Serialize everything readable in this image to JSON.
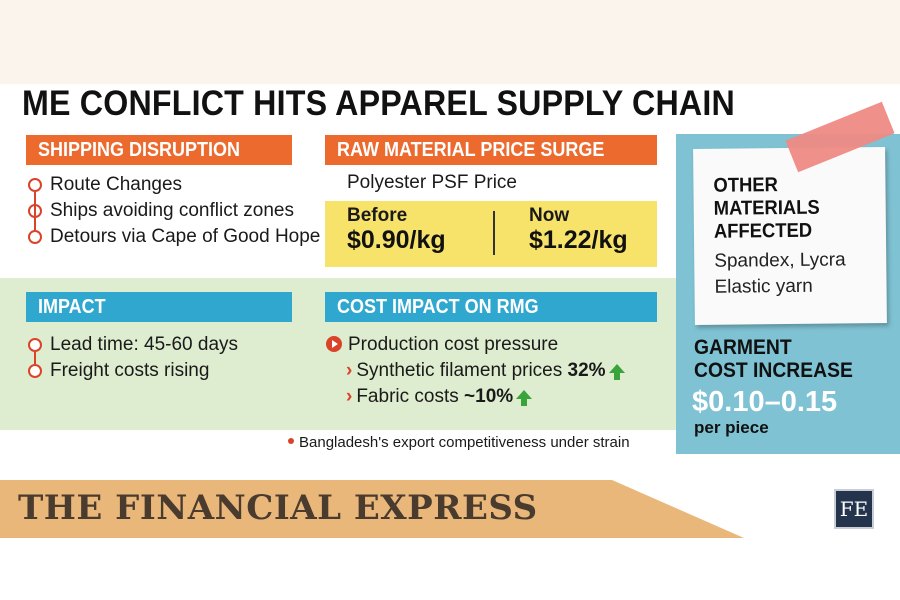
{
  "title": "ME CONFLICT HITS APPAREL SUPPLY CHAIN",
  "shipping": {
    "header": "SHIPPING DISRUPTION",
    "items": [
      "Route Changes",
      "Ships avoiding conflict zones",
      "Detours via Cape of Good Hope"
    ]
  },
  "raw_material": {
    "header": "RAW MATERIAL PRICE SURGE",
    "subtitle": "Polyester PSF Price",
    "before_label": "Before",
    "before_value": "$0.90/kg",
    "now_label": "Now",
    "now_value": "$1.22/kg"
  },
  "impact": {
    "header": "IMPACT",
    "items": [
      "Lead time: 45-60 days",
      "Freight costs rising"
    ]
  },
  "cost_impact": {
    "header": "COST IMPACT ON RMG",
    "main": "Production cost pressure",
    "sub1_text": "Synthetic filament prices ",
    "sub1_pct": "32%",
    "sub2_text": "Fabric costs ",
    "sub2_pct": "~10%"
  },
  "footnote": "Bangladesh's export competitiveness under strain",
  "other_materials": {
    "title_lines": [
      "OTHER",
      "MATERIALS",
      "AFFECTED"
    ],
    "items": [
      "Spandex, Lycra",
      "Elastic yarn"
    ]
  },
  "garment_cost": {
    "title_lines": [
      "GARMENT",
      "COST INCREASE"
    ],
    "value": "$0.10–0.15",
    "unit": "per piece"
  },
  "brand": {
    "name": "THE FINANCIAL EXPRESS",
    "logo": "FE"
  },
  "colors": {
    "orange": "#ec6a2d",
    "blue": "#2fa7cf",
    "accent_red": "#d9432a",
    "yellow": "#f7e36a",
    "green_band": "#deeccf",
    "teal_panel": "#7fc2d3",
    "up_arrow": "#3ba33c"
  }
}
